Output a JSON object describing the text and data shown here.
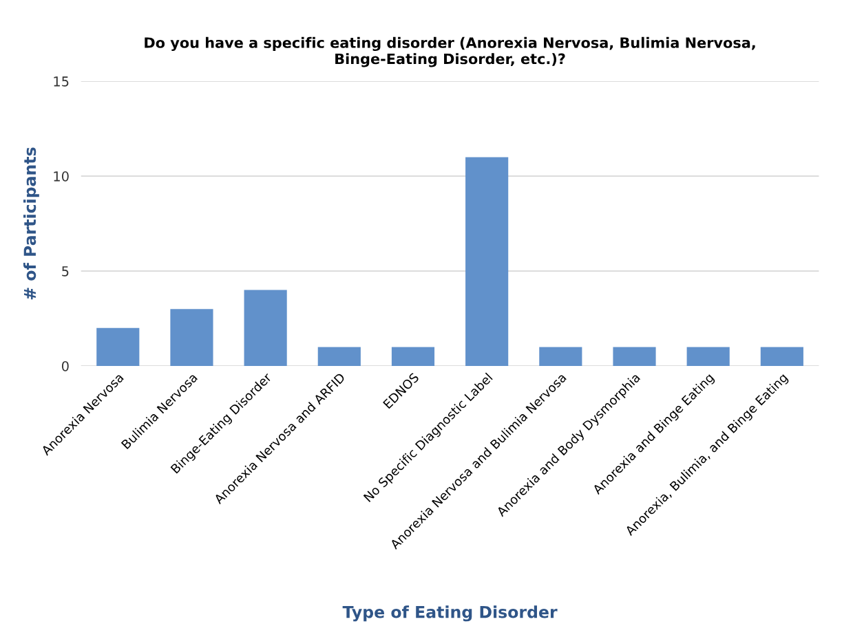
{
  "chart_data": {
    "type": "bar",
    "title": "Do you have a specific eating disorder (Anorexia Nervosa, Bulimia Nervosa,\nBinge-Eating Disorder, etc.)?",
    "xlabel": "Type of Eating Disorder",
    "ylabel": "# of Participants",
    "categories": [
      "Anorexia Nervosa",
      "Bulimia Nervosa",
      "Binge-Eating Disorder",
      "Anorexia Nervosa and ARFID",
      "EDNOS",
      "No Specific Diagnostic Label",
      "Anorexia Nervosa and Bulimia Nervosa",
      "Anorexia and Body Dysmorphia",
      "Anorexia and Binge Eating",
      "Anorexia, Bulimia, and Binge Eating"
    ],
    "values": [
      2,
      3,
      4,
      1,
      1,
      11,
      1,
      1,
      1,
      1
    ],
    "color": "#6191cb",
    "ylim": [
      0,
      15
    ],
    "yticks": [
      0,
      5,
      10,
      15
    ],
    "grid": "y"
  }
}
